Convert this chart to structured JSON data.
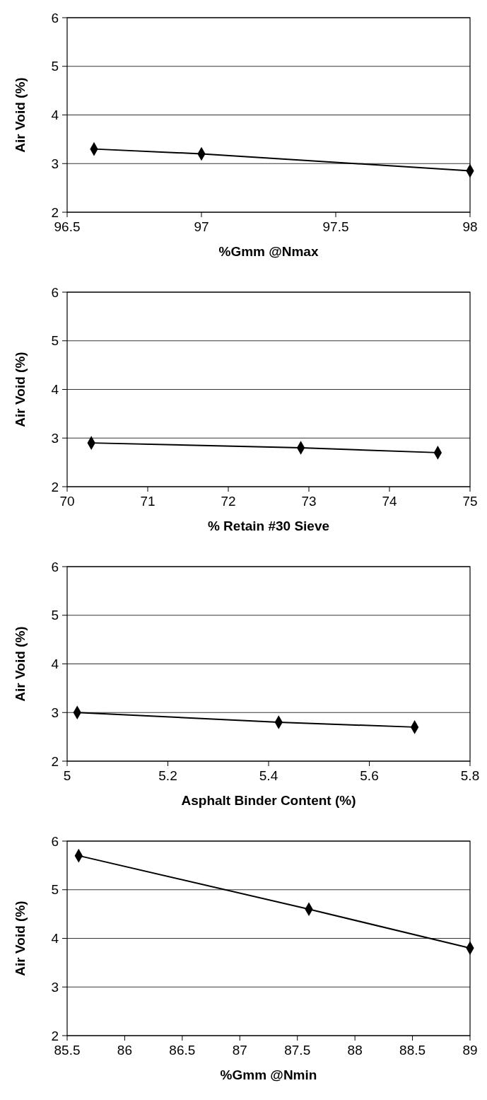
{
  "chart_data": [
    {
      "type": "line",
      "xlabel": "%Gmm @Nmax",
      "ylabel": "Air Void (%)",
      "x": [
        96.6,
        97.0,
        98.0
      ],
      "values": [
        3.3,
        3.2,
        2.85
      ],
      "color": "#000000",
      "xlim": [
        96.5,
        98
      ],
      "xticks": [
        96.5,
        97,
        97.5,
        98
      ],
      "ylim": [
        2,
        6
      ],
      "yticks": [
        2,
        3,
        4,
        5,
        6
      ],
      "grid": "y",
      "marker": "diamond",
      "line_style": "solid"
    },
    {
      "type": "line",
      "xlabel": "% Retain #30 Sieve",
      "ylabel": "Air Void (%)",
      "x": [
        70.3,
        72.9,
        74.6
      ],
      "values": [
        2.9,
        2.8,
        2.7
      ],
      "color": "#000000",
      "xlim": [
        70,
        75
      ],
      "xticks": [
        70,
        71,
        72,
        73,
        74,
        75
      ],
      "ylim": [
        2,
        6
      ],
      "yticks": [
        2,
        3,
        4,
        5,
        6
      ],
      "grid": "y",
      "marker": "diamond",
      "line_style": "solid"
    },
    {
      "type": "line",
      "xlabel": "Asphalt Binder Content (%)",
      "ylabel": "Air Void (%)",
      "x": [
        5.02,
        5.42,
        5.69
      ],
      "values": [
        3.0,
        2.8,
        2.7
      ],
      "color": "#000000",
      "xlim": [
        5,
        5.8
      ],
      "xticks": [
        5,
        5.2,
        5.4,
        5.6,
        5.8
      ],
      "ylim": [
        2,
        6
      ],
      "yticks": [
        2,
        3,
        4,
        5,
        6
      ],
      "grid": "y",
      "marker": "diamond",
      "line_style": "solid"
    },
    {
      "type": "line",
      "xlabel": "%Gmm @Nmin",
      "ylabel": "Air Void (%)",
      "x": [
        85.6,
        87.6,
        89.0
      ],
      "values": [
        5.7,
        4.6,
        3.8
      ],
      "color": "#000000",
      "xlim": [
        85.5,
        89
      ],
      "xticks": [
        85.5,
        86,
        86.5,
        87,
        87.5,
        88,
        88.5,
        89
      ],
      "ylim": [
        2,
        6
      ],
      "yticks": [
        2,
        3,
        4,
        5,
        6
      ],
      "grid": "y",
      "marker": "diamond",
      "line_style": "solid"
    }
  ]
}
